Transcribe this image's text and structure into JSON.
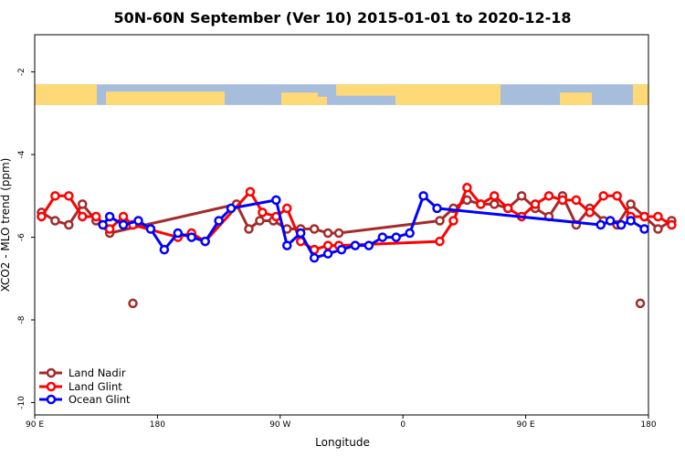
{
  "chart_data": {
    "type": "line",
    "title": "50N-60N September (Ver 10)   2015-01-01 to 2020-12-18",
    "xlabel": "Longitude",
    "ylabel": "XCO2 - MLO trend (ppm)",
    "xlim": [
      90,
      540
    ],
    "ylim": [
      -10.3,
      -1.1
    ],
    "x_ticks": [
      {
        "value": 90,
        "label": "90 E"
      },
      {
        "value": 180,
        "label": "180"
      },
      {
        "value": 270,
        "label": "90 W"
      },
      {
        "value": 360,
        "label": "0"
      },
      {
        "value": 450,
        "label": "90 E"
      },
      {
        "value": 540,
        "label": "180"
      }
    ],
    "y_ticks": [
      {
        "value": -2,
        "label": "-2"
      },
      {
        "value": -4,
        "label": "-4"
      },
      {
        "value": -6,
        "label": "-6"
      },
      {
        "value": -8,
        "label": "-8"
      },
      {
        "value": -10,
        "label": "-10"
      }
    ],
    "map_band": {
      "lat_range": "50N-60N",
      "y_range": [
        -2.8,
        -2.3
      ],
      "ocean_color": "#a6bddb",
      "land_color": "#fed976"
    },
    "legend_position": "bottom-left",
    "series": [
      {
        "name": "Land Nadir",
        "color": "#a52a2a",
        "points": [
          [
            95,
            -5.4
          ],
          [
            105,
            -5.6
          ],
          [
            115,
            -5.7
          ],
          [
            125,
            -5.2
          ],
          [
            135,
            -5.6
          ],
          [
            145,
            -5.9
          ],
          [
            238,
            -5.2
          ],
          [
            247,
            -5.8
          ],
          [
            255,
            -5.6
          ],
          [
            265,
            -5.6
          ],
          [
            275,
            -5.8
          ],
          [
            285,
            -5.8
          ],
          [
            295,
            -5.8
          ],
          [
            305,
            -5.9
          ],
          [
            313,
            -5.9
          ],
          [
            387,
            -5.6
          ],
          [
            397,
            -5.3
          ],
          [
            407,
            -5.1
          ],
          [
            417,
            -5.2
          ],
          [
            427,
            -5.2
          ],
          [
            437,
            -5.3
          ],
          [
            447,
            -5.0
          ],
          [
            457,
            -5.3
          ],
          [
            467,
            -5.5
          ],
          [
            477,
            -5.0
          ],
          [
            487,
            -5.7
          ],
          [
            497,
            -5.3
          ],
          [
            507,
            -5.6
          ],
          [
            517,
            -5.7
          ],
          [
            527,
            -5.2
          ],
          [
            537,
            -5.5
          ],
          [
            547,
            -5.8
          ],
          [
            557,
            -5.6
          ]
        ],
        "outliers": [
          [
            162,
            -7.6
          ],
          [
            534,
            -7.6
          ]
        ]
      },
      {
        "name": "Land Glint",
        "color": "#ff0000",
        "points": [
          [
            95,
            -5.5
          ],
          [
            105,
            -5.0
          ],
          [
            115,
            -5.0
          ],
          [
            125,
            -5.5
          ],
          [
            135,
            -5.5
          ],
          [
            145,
            -5.8
          ],
          [
            155,
            -5.5
          ],
          [
            162,
            -5.7
          ],
          [
            195,
            -6.0
          ],
          [
            205,
            -5.9
          ],
          [
            215,
            -6.1
          ],
          [
            248,
            -4.9
          ],
          [
            257,
            -5.4
          ],
          [
            267,
            -5.5
          ],
          [
            275,
            -5.3
          ],
          [
            285,
            -6.1
          ],
          [
            295,
            -6.3
          ],
          [
            305,
            -6.2
          ],
          [
            313,
            -6.2
          ],
          [
            387,
            -6.1
          ],
          [
            397,
            -5.6
          ],
          [
            407,
            -4.8
          ],
          [
            417,
            -5.2
          ],
          [
            427,
            -5.0
          ],
          [
            437,
            -5.3
          ],
          [
            447,
            -5.5
          ],
          [
            457,
            -5.2
          ],
          [
            467,
            -5.0
          ],
          [
            477,
            -5.1
          ],
          [
            487,
            -5.1
          ],
          [
            497,
            -5.4
          ],
          [
            507,
            -5.0
          ],
          [
            517,
            -5.0
          ],
          [
            527,
            -5.5
          ],
          [
            537,
            -5.5
          ],
          [
            547,
            -5.5
          ],
          [
            557,
            -5.7
          ]
        ]
      },
      {
        "name": "Ocean Glint",
        "color": "#0000ff",
        "points": [
          [
            140,
            -5.7
          ],
          [
            145,
            -5.5
          ],
          [
            155,
            -5.7
          ],
          [
            166,
            -5.6
          ],
          [
            175,
            -5.8
          ],
          [
            185,
            -6.3
          ],
          [
            195,
            -5.9
          ],
          [
            205,
            -6.0
          ],
          [
            215,
            -6.1
          ],
          [
            225,
            -5.6
          ],
          [
            234,
            -5.3
          ],
          [
            267,
            -5.1
          ],
          [
            275,
            -6.2
          ],
          [
            285,
            -5.9
          ],
          [
            295,
            -6.5
          ],
          [
            305,
            -6.4
          ],
          [
            315,
            -6.3
          ],
          [
            325,
            -6.2
          ],
          [
            335,
            -6.2
          ],
          [
            345,
            -6.0
          ],
          [
            355,
            -6.0
          ],
          [
            365,
            -5.9
          ],
          [
            375,
            -5.0
          ],
          [
            385,
            -5.3
          ],
          [
            505,
            -5.7
          ],
          [
            512,
            -5.6
          ],
          [
            520,
            -5.7
          ],
          [
            527,
            -5.6
          ],
          [
            537,
            -5.8
          ]
        ]
      }
    ]
  }
}
